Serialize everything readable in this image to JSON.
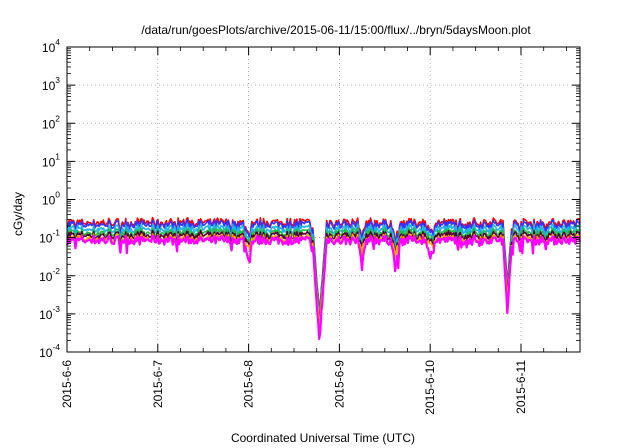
{
  "chart_data": {
    "type": "line",
    "title": "/data/run/goesPlots/archive/2015-06-11/15:00/flux/../bryn/5daysMoon.plot",
    "xlabel": "Coordinated Universal Time (UTC)",
    "ylabel": "cGy/day",
    "yscale": "log",
    "ylim": [
      0.0001,
      10000
    ],
    "xlim": [
      "2015-06-06 00:00",
      "2015-06-11 15:00"
    ],
    "grid": true,
    "legend": "none",
    "x_ticks": [
      "2015-6-6",
      "2015-6-7",
      "2015-6-8",
      "2015-6-9",
      "2015-6-10",
      "2015-6-11"
    ],
    "y_ticks": [
      {
        "base": "10",
        "exp": "-4"
      },
      {
        "base": "10",
        "exp": "-3"
      },
      {
        "base": "10",
        "exp": "-2"
      },
      {
        "base": "10",
        "exp": "-1"
      },
      {
        "base": "10",
        "exp": "0"
      },
      {
        "base": "10",
        "exp": "1"
      },
      {
        "base": "10",
        "exp": "2"
      },
      {
        "base": "10",
        "exp": "3"
      },
      {
        "base": "10",
        "exp": "4"
      }
    ],
    "series": [
      {
        "color": "#ff0000",
        "baseline": 0.25
      },
      {
        "color": "#3333ff",
        "baseline": 0.22
      },
      {
        "color": "#1fb4e6",
        "baseline": 0.17
      },
      {
        "color": "#22bb44",
        "baseline": 0.135
      },
      {
        "color": "#550033",
        "baseline": 0.115
      },
      {
        "color": "#ffa500",
        "baseline": 0.095
      },
      {
        "color": "#ff00ff",
        "baseline": 0.085
      }
    ],
    "dips": [
      {
        "day": 2.0,
        "factor": 0.45,
        "width": 0.04
      },
      {
        "day": 2.78,
        "factor": 0.004,
        "width": 0.08
      },
      {
        "day": 3.25,
        "factor": 0.35,
        "width": 0.04
      },
      {
        "day": 3.62,
        "factor": 0.3,
        "width": 0.05
      },
      {
        "day": 4.0,
        "factor": 0.5,
        "width": 0.04
      },
      {
        "day": 4.85,
        "factor": 0.028,
        "width": 0.05
      }
    ]
  }
}
